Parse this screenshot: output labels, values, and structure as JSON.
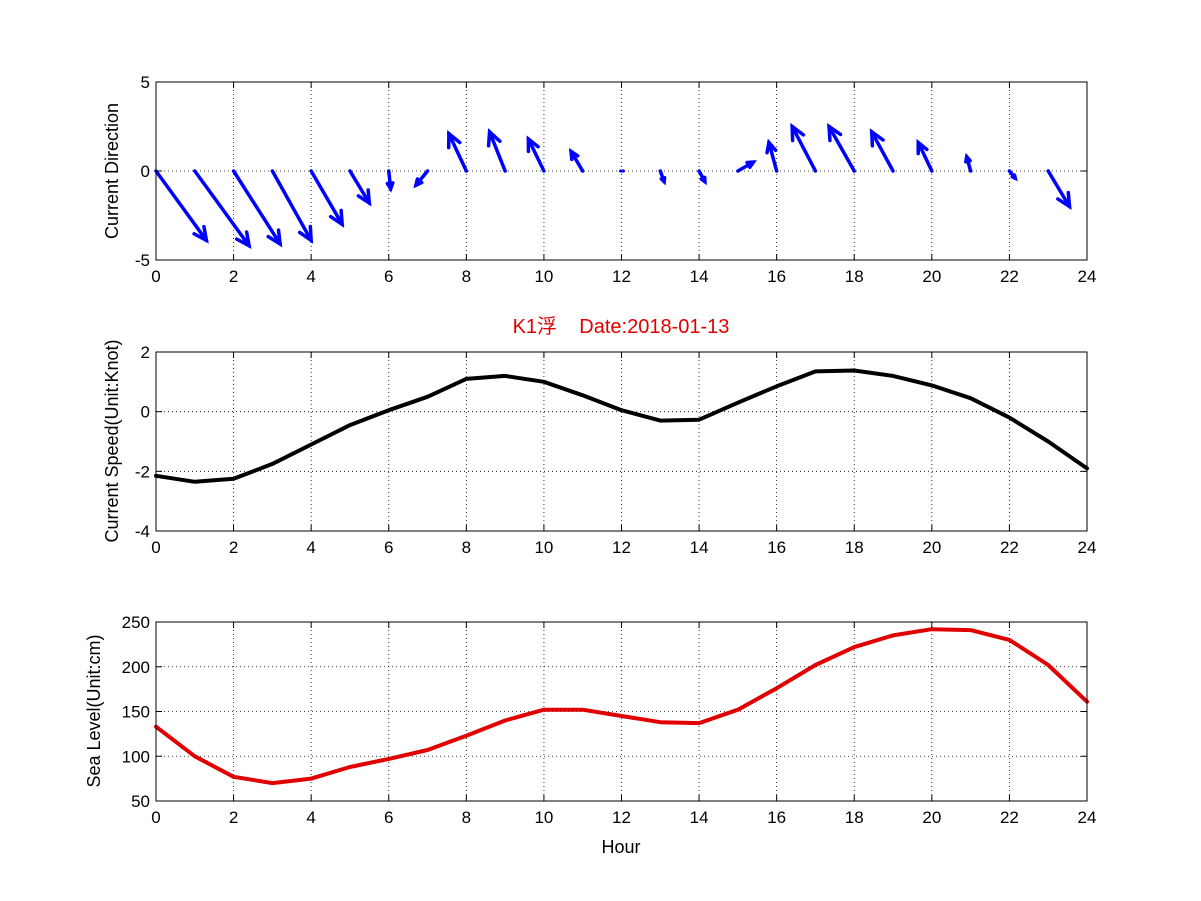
{
  "figure": {
    "title": "K1浮    Date:2018-01-13",
    "title_color": "#e00000"
  },
  "chart_data": [
    {
      "type": "quiver",
      "ylabel": "Current Direction",
      "xlabel": "",
      "xlim": [
        0,
        24
      ],
      "ylim": [
        -5,
        5
      ],
      "xticks": [
        0,
        2,
        4,
        6,
        8,
        10,
        12,
        14,
        16,
        18,
        20,
        22,
        24
      ],
      "yticks": [
        -5,
        0,
        5
      ],
      "grid": true,
      "color": "#0000ff",
      "x": [
        0,
        1,
        2,
        3,
        4,
        5,
        6,
        7,
        8,
        9,
        10,
        11,
        12,
        13,
        14,
        15,
        16,
        17,
        18,
        19,
        20,
        21,
        22,
        23
      ],
      "u": [
        1.3,
        1.4,
        1.2,
        1.0,
        0.8,
        0.5,
        0.05,
        -0.3,
        -0.45,
        -0.4,
        -0.4,
        -0.3,
        0.05,
        0.1,
        0.15,
        0.4,
        -0.2,
        -0.6,
        -0.65,
        -0.55,
        -0.35,
        -0.1,
        0.15,
        0.55
      ],
      "v": [
        -3.9,
        -4.2,
        -4.1,
        -3.9,
        -3.0,
        -1.8,
        -1.0,
        -0.8,
        2.1,
        2.2,
        1.8,
        1.1,
        0.05,
        -0.6,
        -0.6,
        0.5,
        1.6,
        2.5,
        2.5,
        2.2,
        1.6,
        0.8,
        -0.4,
        -2.0
      ]
    },
    {
      "type": "line",
      "ylabel": "Current Speed(Unit:Knot)",
      "xlabel": "",
      "xlim": [
        0,
        24
      ],
      "ylim": [
        -4,
        2
      ],
      "xticks": [
        0,
        2,
        4,
        6,
        8,
        10,
        12,
        14,
        16,
        18,
        20,
        22,
        24
      ],
      "yticks": [
        -4,
        -2,
        0,
        2
      ],
      "grid": true,
      "color": "#000000",
      "x": [
        0,
        1,
        2,
        3,
        4,
        5,
        6,
        7,
        8,
        9,
        10,
        11,
        12,
        13,
        14,
        15,
        16,
        17,
        18,
        19,
        20,
        21,
        22,
        23,
        24
      ],
      "y": [
        -2.15,
        -2.35,
        -2.25,
        -1.75,
        -1.1,
        -0.45,
        0.05,
        0.5,
        1.1,
        1.2,
        1.0,
        0.55,
        0.05,
        -0.3,
        -0.27,
        0.3,
        0.85,
        1.35,
        1.38,
        1.2,
        0.88,
        0.45,
        -0.2,
        -1.0,
        -1.9
      ]
    },
    {
      "type": "line",
      "ylabel": "Sea Level(Unit:cm)",
      "xlabel": "Hour",
      "xlim": [
        0,
        24
      ],
      "ylim": [
        50,
        250
      ],
      "xticks": [
        0,
        2,
        4,
        6,
        8,
        10,
        12,
        14,
        16,
        18,
        20,
        22,
        24
      ],
      "yticks": [
        50,
        100,
        150,
        200,
        250
      ],
      "grid": true,
      "color": "#e00000",
      "x": [
        0,
        1,
        2,
        3,
        4,
        5,
        6,
        7,
        8,
        9,
        10,
        11,
        12,
        13,
        14,
        15,
        16,
        17,
        18,
        19,
        20,
        21,
        22,
        23,
        24
      ],
      "y": [
        133,
        100,
        77,
        70,
        75,
        88,
        97,
        107,
        123,
        140,
        152,
        152,
        145,
        138,
        137,
        152,
        176,
        202,
        222,
        235,
        242,
        241,
        230,
        202,
        161
      ]
    }
  ]
}
